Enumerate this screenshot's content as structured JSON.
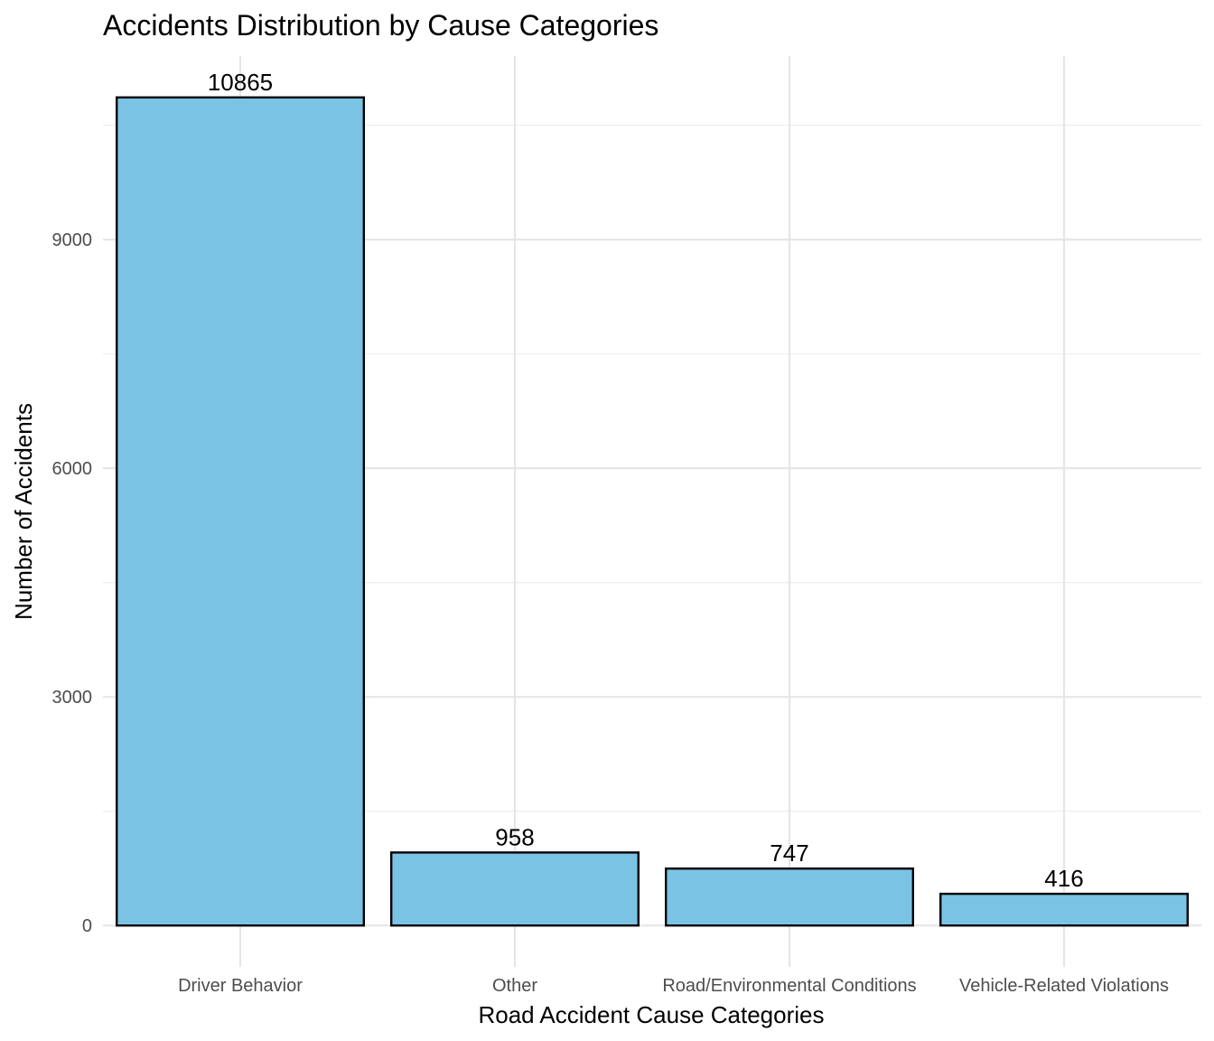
{
  "chart_data": {
    "type": "bar",
    "title": "Accidents Distribution by Cause Categories",
    "xlabel": "Road Accident Cause Categories",
    "ylabel": "Number of Accidents",
    "categories": [
      "Driver Behavior",
      "Other",
      "Road/Environmental Conditions",
      "Vehicle-Related Violations"
    ],
    "values": [
      10865,
      958,
      747,
      416
    ],
    "data_labels": [
      "10865",
      "958",
      "747",
      "416"
    ],
    "ylim": [
      -543,
      11408
    ],
    "yticks": [
      0,
      3000,
      6000,
      9000
    ],
    "ytick_labels": [
      "0",
      "3000",
      "6000",
      "9000"
    ],
    "grid": true,
    "bar_color": "#7AC3E5",
    "bar_edge_color": "#000000",
    "legend": "none"
  }
}
